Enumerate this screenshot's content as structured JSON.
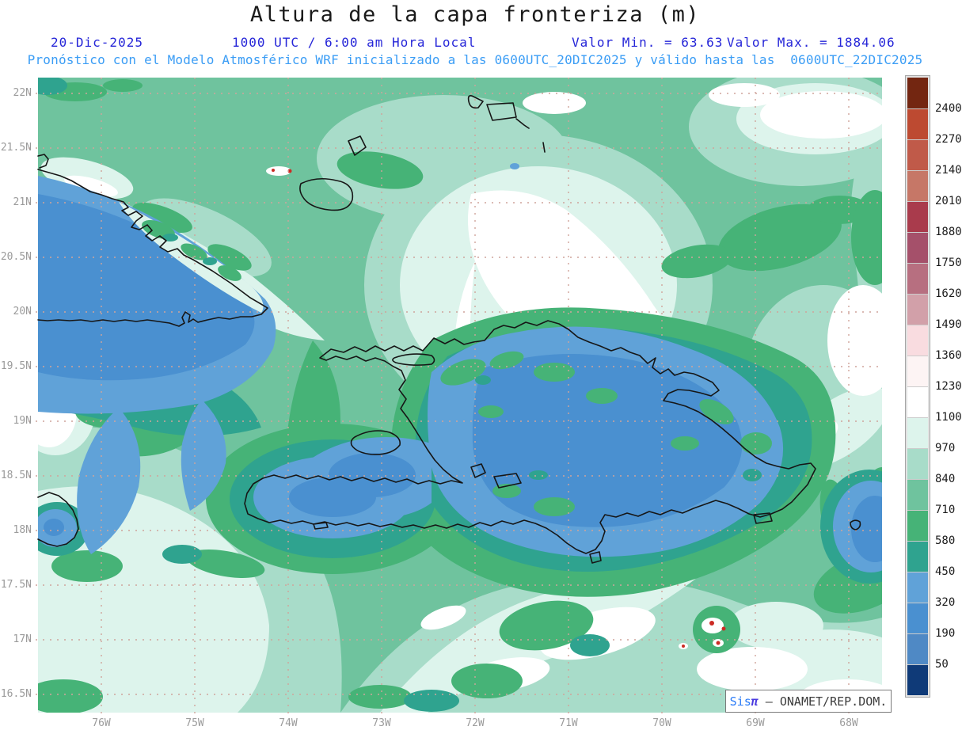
{
  "header": {
    "title": "Altura de la capa fronteriza (m)",
    "date": "20-Dic-2025",
    "time_local": "1000 UTC / 6:00 am Hora Local",
    "valor_min": "Valor Min. = 63.63",
    "valor_max": "Valor Max. = 1884.06",
    "model_line": "Pronóstico con el Modelo Atmosférico WRF inicializado a las 0600UTC_20DIC2025 y válido hasta las  0600UTC_22DIC2025"
  },
  "map": {
    "lat_labels": [
      "22N",
      "21.5N",
      "21N",
      "20.5N",
      "20N",
      "19.5N",
      "19N",
      "18.5N",
      "18N",
      "17.5N",
      "17N",
      "16.5N"
    ],
    "lon_labels": [
      "76W",
      "75W",
      "74W",
      "73W",
      "72W",
      "71W",
      "70W",
      "69W",
      "68W"
    ]
  },
  "colorbar": {
    "tick_labels": [
      "2400",
      "2270",
      "2140",
      "2010",
      "1880",
      "1750",
      "1620",
      "1490",
      "1360",
      "1230",
      "1100",
      "970",
      "840",
      "710",
      "580",
      "450",
      "320",
      "190",
      "50"
    ],
    "colors_top_to_bottom": [
      "#732611",
      "#bd4a31",
      "#c05a49",
      "#c67767",
      "#a93b4c",
      "#a5506a",
      "#b76f80",
      "#d2a0a9",
      "#f9dce0",
      "#fdf4f4",
      "#ffffff",
      "#ddf4ec",
      "#a8dcc9",
      "#6fc39e",
      "#46b377",
      "#2fa38f",
      "#60a2d8",
      "#4a90d0",
      "#4f89c5",
      "#0f3a78"
    ]
  },
  "watermark": {
    "brand": "Sis",
    "pi": "π",
    "org": " – ONAMET/REP.DOM."
  },
  "chart_data": {
    "type": "heatmap",
    "title": "Altura de la capa fronteriza (m)",
    "units": "m",
    "value_min": 63.63,
    "value_max": 1884.06,
    "run_date": "20-Dic-2025",
    "run_time": "1000 UTC / 6:00 am Hora Local",
    "model": "WRF",
    "initialized": "0600UTC_20DIC2025",
    "valid_until": "0600UTC_22DIC2025",
    "x_tick_labels": [
      "76W",
      "75W",
      "74W",
      "73W",
      "72W",
      "71W",
      "70W",
      "69W",
      "68W"
    ],
    "y_tick_labels": [
      "22N",
      "21.5N",
      "21N",
      "20.5N",
      "20N",
      "19.5N",
      "19N",
      "18.5N",
      "18N",
      "17.5N",
      "17N",
      "16.5N"
    ],
    "contour_levels": [
      50,
      190,
      320,
      450,
      580,
      710,
      840,
      970,
      1100,
      1230,
      1360,
      1490,
      1620,
      1750,
      1880,
      2010,
      2140,
      2270,
      2400
    ],
    "palette_low_to_high": [
      "#0f3a78",
      "#4f89c5",
      "#4a90d0",
      "#60a2d8",
      "#2fa38f",
      "#46b377",
      "#6fc39e",
      "#a8dcc9",
      "#ddf4ec",
      "#ffffff",
      "#fdf4f4",
      "#f9dce0",
      "#d2a0a9",
      "#b76f80",
      "#a5506a",
      "#a93b4c",
      "#c67767",
      "#c05a49",
      "#bd4a31",
      "#732611"
    ],
    "legend_position": "right",
    "grid": true,
    "region_note": "Filled contours of boundary-layer height: low (blue) over Cuba, Hispaniola, Jamaica, Mona/PR area; higher (green→white) over surrounding ocean"
  }
}
